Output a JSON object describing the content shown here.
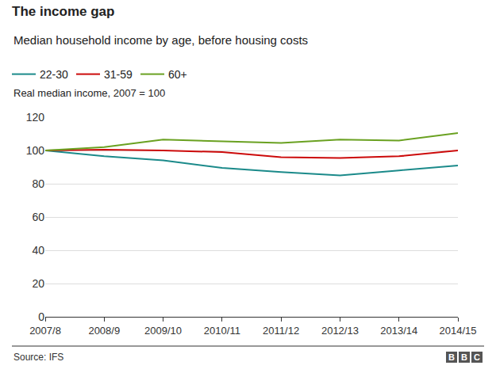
{
  "chart_data": {
    "type": "line",
    "title": "The income gap",
    "subtitle": "Median household income by age, before housing costs",
    "y_label": "Real median income, 2007 = 100",
    "source": "Source: IFS",
    "logo": "BBC",
    "categories": [
      "2007/8",
      "2008/9",
      "2009/10",
      "2010/11",
      "2011/12",
      "2012/13",
      "2013/14",
      "2014/15"
    ],
    "series": [
      {
        "name": "22-30",
        "color": "#1b8a8a",
        "values": [
          100,
          96.5,
          94,
          89.5,
          87,
          85,
          88,
          91
        ]
      },
      {
        "name": "31-59",
        "color": "#cc0a0a",
        "values": [
          100,
          100.5,
          100,
          99,
          96,
          95.5,
          96.5,
          100
        ]
      },
      {
        "name": "60+",
        "color": "#6aa121",
        "values": [
          100,
          102,
          106.5,
          105.5,
          104.5,
          106.5,
          106,
          110.5
        ]
      }
    ],
    "ylim": [
      0,
      120
    ],
    "yticks": [
      0,
      20,
      40,
      60,
      80,
      100,
      120
    ],
    "grid": true,
    "legend": "top-left"
  }
}
